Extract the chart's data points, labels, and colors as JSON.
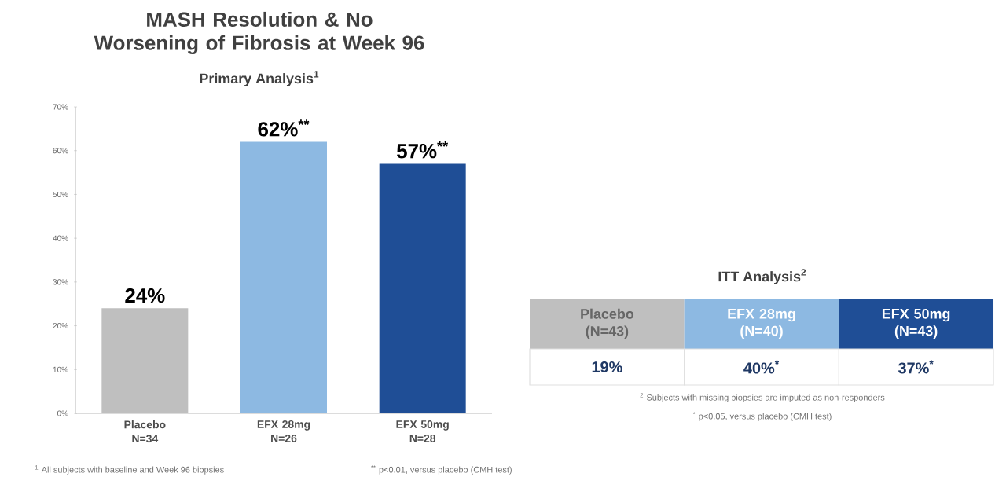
{
  "chart_data": [
    {
      "type": "bar",
      "title": "MASH Resolution & No Worsening of Fibrosis at Week 96",
      "subtitle": "Primary Analysis$^{1}$",
      "categories": [
        "Placebo N=34",
        "EFX 28mg N=26",
        "EFX 50mg N=28"
      ],
      "values": [
        24,
        62,
        57
      ],
      "colors": [
        "#bfbfbf",
        "#8db9e2",
        "#1f4e96"
      ],
      "value_labels": [
        "24%",
        "62%$^{**}$",
        "57%$^{**}$"
      ],
      "ylim": [
        0,
        70
      ],
      "yticks": [
        {
          "value": 0,
          "label": "0%"
        },
        {
          "value": 10,
          "label": "10%"
        },
        {
          "value": 20,
          "label": "20%"
        },
        {
          "value": 30,
          "label": "30%"
        },
        {
          "value": 40,
          "label": "40%"
        },
        {
          "value": 50,
          "label": "50%"
        },
        {
          "value": 60,
          "label": "60%"
        },
        {
          "value": 70,
          "label": "70%"
        }
      ],
      "grid": false,
      "annotations": [
        "$^{1}$ All subjects with baseline and Week 96 biopsies",
        "$^{**}$ p<0.01, versus placebo (CMH test)"
      ]
    },
    {
      "type": "other",
      "title": "ITT Analysis$^{2}$",
      "categories": [
        "Placebo (N=43)",
        "EFX 28mg (N=40)",
        "EFX 50mg (N=43)"
      ],
      "values": [
        19,
        40,
        37
      ],
      "colors": [
        "#bfbfbf",
        "#8db9e2",
        "#1f4e96"
      ],
      "value_labels": [
        "19%",
        "40%$^{*}$",
        "37%$^{*}$"
      ],
      "annotations": [
        "$^{2}$ Subjects with missing biopsies are imputed as non-responders",
        "$^{*}$ p<0.05, versus placebo (CMH test)"
      ]
    }
  ]
}
